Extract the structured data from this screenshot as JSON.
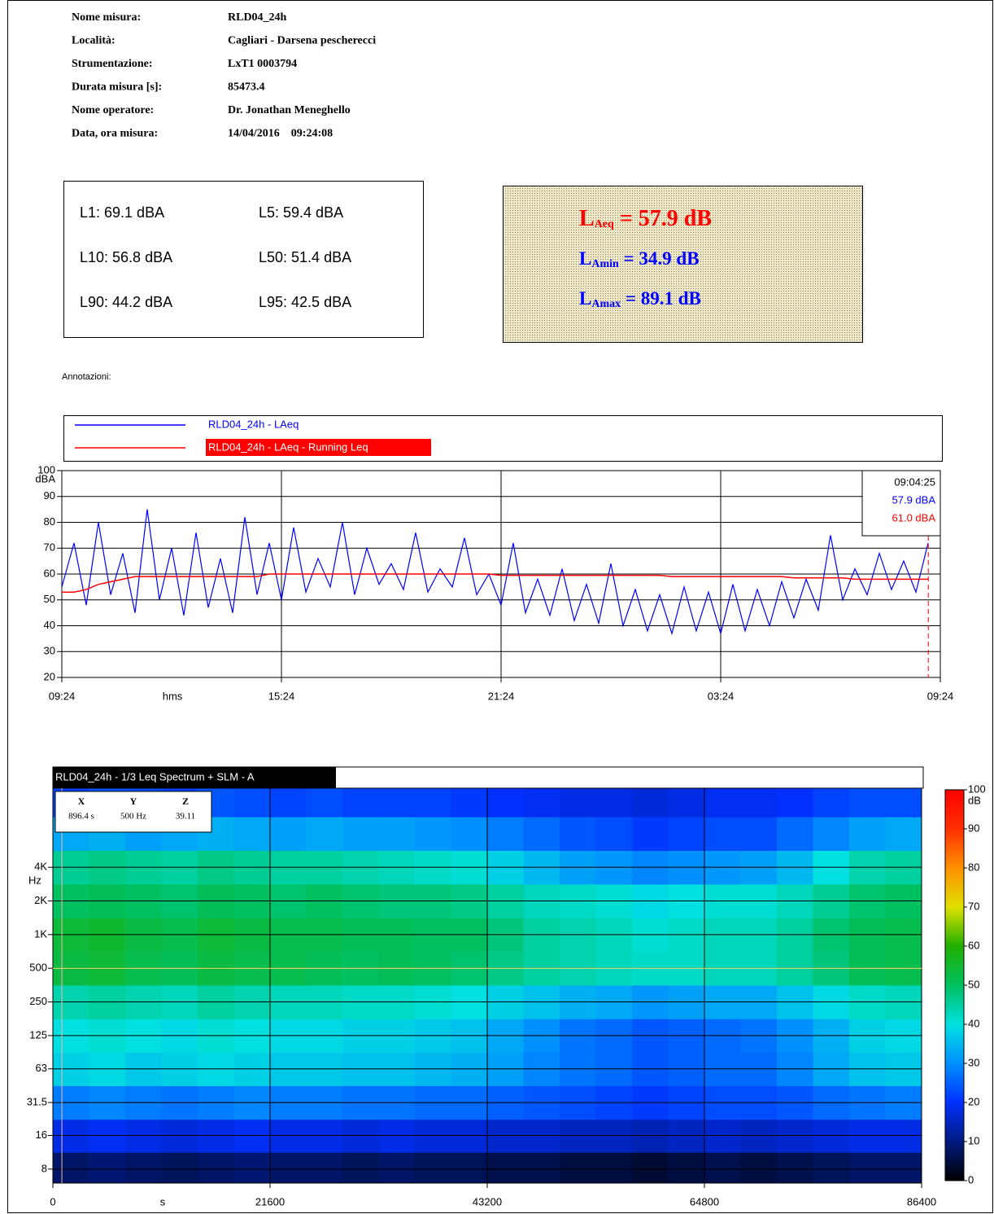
{
  "header": {
    "rows": [
      {
        "label": "Nome misura:",
        "value": "RLD04_24h"
      },
      {
        "label": "Località:",
        "value": "Cagliari - Darsena pescherecci"
      },
      {
        "label": "Strumentazione:",
        "value": "LxT1 0003794"
      },
      {
        "label": "Durata misura [s]:",
        "value": "85473.4"
      },
      {
        "label": "Nome operatore:",
        "value": "Dr. Jonathan Meneghello"
      },
      {
        "label": "Data, ora misura:",
        "value": "14/04/2016    09:24:08"
      }
    ]
  },
  "percentiles": [
    "L1: 69.1 dBA",
    "L5: 59.4 dBA",
    "L10: 56.8 dBA",
    "L50: 51.4 dBA",
    "L90: 44.2 dBA",
    "L95: 42.5 dBA"
  ],
  "levels": [
    {
      "symbol": "L",
      "subscript": "Aeq",
      "text": " = 57.9 dB",
      "color": "#ff0000"
    },
    {
      "symbol": "L",
      "subscript": "Amin",
      "text": " = 34.9 dB",
      "color": "#0000ff"
    },
    {
      "symbol": "L",
      "subscript": "Amax",
      "text": " = 89.1 dB",
      "color": "#0000ff"
    }
  ],
  "annotations_label": "Annotazioni:",
  "chart_data": [
    {
      "type": "line",
      "x_label": "hms",
      "y_label": "dBA",
      "xlim": [
        0,
        1440
      ],
      "xticks": [
        {
          "value": 0,
          "label": "09:24"
        },
        {
          "value": 360,
          "label": "15:24"
        },
        {
          "value": 720,
          "label": "21:24"
        },
        {
          "value": 1080,
          "label": "03:24"
        },
        {
          "value": 1440,
          "label": "09:24"
        }
      ],
      "ylim": [
        20,
        100
      ],
      "yticks": [
        20,
        30,
        40,
        50,
        60,
        70,
        80,
        90,
        100
      ],
      "grid": true,
      "legend_selected": 1,
      "x": [
        0,
        20,
        40,
        60,
        80,
        100,
        120,
        140,
        160,
        180,
        200,
        220,
        240,
        260,
        280,
        300,
        320,
        340,
        360,
        380,
        400,
        420,
        440,
        460,
        480,
        500,
        520,
        540,
        560,
        580,
        600,
        620,
        640,
        660,
        680,
        700,
        720,
        740,
        760,
        780,
        800,
        820,
        840,
        860,
        880,
        900,
        920,
        940,
        960,
        980,
        1000,
        1020,
        1040,
        1060,
        1080,
        1100,
        1120,
        1140,
        1160,
        1180,
        1200,
        1220,
        1240,
        1260,
        1280,
        1300,
        1320,
        1340,
        1360,
        1380,
        1400,
        1420
      ],
      "series": [
        {
          "name": "RLD04_24h - LAeq",
          "color": "#0000ff",
          "values": [
            55,
            72,
            48,
            80,
            52,
            68,
            45,
            85,
            50,
            70,
            44,
            76,
            47,
            66,
            45,
            82,
            52,
            72,
            50,
            78,
            53,
            66,
            55,
            80,
            52,
            70,
            56,
            64,
            54,
            76,
            53,
            62,
            55,
            74,
            52,
            60,
            48,
            72,
            45,
            58,
            44,
            62,
            42,
            56,
            41,
            64,
            40,
            54,
            38,
            52,
            37,
            55,
            38,
            53,
            37,
            56,
            38,
            54,
            40,
            57,
            43,
            58,
            46,
            75,
            50,
            62,
            52,
            68,
            54,
            65,
            53,
            72
          ]
        },
        {
          "name": "RLD04_24h - LAeq - Running Leq",
          "color": "#ff0000",
          "values": [
            53,
            53,
            54,
            56,
            57,
            58,
            59,
            59,
            59,
            59,
            59,
            59,
            59,
            59,
            59,
            59,
            59,
            60,
            60,
            60,
            60,
            60,
            60,
            60,
            60,
            60,
            60,
            60,
            60,
            60,
            60,
            60,
            60,
            60,
            60,
            60,
            59.5,
            59.5,
            59.5,
            59.5,
            59.5,
            59.5,
            59.5,
            59.5,
            59.5,
            59.5,
            59.5,
            59.5,
            59.5,
            59.5,
            59,
            59,
            59,
            59,
            59,
            59,
            59,
            59,
            59,
            59,
            58.5,
            58.5,
            58.5,
            58.5,
            58.5,
            58,
            58,
            58,
            58,
            58,
            58,
            58
          ]
        }
      ],
      "cursor": {
        "x": 1420.3,
        "time": "09:04:25",
        "readouts": [
          "57.9 dBA",
          "61.0 dBA"
        ]
      }
    },
    {
      "type": "heatmap",
      "title": "RLD04_24h - 1/3 Leq Spectrum + SLM - A",
      "x_label": "s",
      "y_label": "Hz",
      "z_label": "dB",
      "log_y": true,
      "xlim": [
        0,
        86400
      ],
      "xticks": [
        0,
        21600,
        43200,
        64800,
        86400
      ],
      "ylim": [
        6,
        20400
      ],
      "yticks": [
        8,
        16,
        31.5,
        63,
        125,
        250,
        500,
        {
          "value": 1000,
          "label": "1K"
        },
        {
          "value": 2000,
          "label": "2K"
        },
        {
          "value": 4000,
          "label": "4K"
        }
      ],
      "zlim": [
        0,
        100
      ],
      "zticks": [
        0,
        10,
        20,
        30,
        40,
        50,
        60,
        70,
        80,
        90,
        100
      ],
      "colorscale": [
        "#000000",
        "#001a80",
        "#0030ff",
        "#0090ff",
        "#00e0e0",
        "#00c060",
        "#20b000",
        "#e0e000",
        "#ff9000",
        "#ff3000",
        "#ff0000"
      ],
      "x_bins": [
        0,
        3600,
        7200,
        10800,
        14400,
        18000,
        21600,
        25200,
        28800,
        32400,
        36000,
        39600,
        43200,
        46800,
        50400,
        54000,
        57600,
        61200,
        64800,
        68400,
        72000,
        75600,
        79200,
        82800,
        86400
      ],
      "y_bands": [
        8,
        16,
        31.5,
        63,
        125,
        250,
        500,
        1000,
        2000,
        4000,
        8000,
        16000
      ],
      "z": [
        [
          8,
          9,
          8,
          7,
          8,
          9,
          8,
          8,
          7,
          8,
          7,
          7,
          6,
          6,
          5,
          5,
          4,
          5,
          6,
          5,
          6,
          7,
          8,
          8
        ],
        [
          18,
          19,
          18,
          17,
          18,
          19,
          18,
          18,
          17,
          18,
          17,
          17,
          16,
          16,
          15,
          15,
          14,
          15,
          16,
          15,
          16,
          17,
          18,
          18
        ],
        [
          28,
          29,
          28,
          27,
          28,
          29,
          28,
          28,
          27,
          27,
          26,
          26,
          25,
          24,
          23,
          22,
          21,
          22,
          23,
          23,
          24,
          26,
          27,
          28
        ],
        [
          38,
          39,
          37,
          38,
          39,
          38,
          37,
          37,
          36,
          36,
          35,
          34,
          32,
          29,
          27,
          26,
          24,
          25,
          26,
          26,
          29,
          33,
          36,
          37
        ],
        [
          40,
          41,
          40,
          39,
          41,
          40,
          39,
          39,
          38,
          38,
          37,
          36,
          33,
          30,
          27,
          26,
          24,
          25,
          26,
          27,
          30,
          34,
          38,
          39
        ],
        [
          44,
          45,
          44,
          43,
          45,
          44,
          43,
          43,
          42,
          42,
          41,
          40,
          38,
          36,
          34,
          33,
          31,
          32,
          33,
          33,
          36,
          39,
          42,
          43
        ],
        [
          53,
          54,
          52,
          51,
          53,
          52,
          52,
          51,
          50,
          51,
          50,
          49,
          47,
          45,
          44,
          43,
          42,
          42,
          43,
          43,
          45,
          48,
          51,
          52
        ],
        [
          54,
          55,
          53,
          52,
          54,
          53,
          52,
          52,
          51,
          51,
          50,
          50,
          48,
          45,
          44,
          43,
          41,
          42,
          43,
          43,
          45,
          49,
          51,
          52
        ],
        [
          50,
          51,
          50,
          49,
          51,
          50,
          49,
          50,
          49,
          48,
          48,
          47,
          45,
          43,
          42,
          41,
          39,
          40,
          41,
          41,
          43,
          46,
          49,
          50
        ],
        [
          46,
          47,
          46,
          45,
          47,
          46,
          45,
          45,
          44,
          43,
          42,
          41,
          38,
          35,
          32,
          31,
          29,
          30,
          31,
          32,
          35,
          40,
          44,
          45
        ],
        [
          33,
          34,
          32,
          33,
          34,
          33,
          32,
          33,
          32,
          32,
          31,
          30,
          28,
          26,
          24,
          23,
          21,
          22,
          23,
          23,
          26,
          29,
          32,
          33
        ],
        [
          22,
          24,
          23,
          22,
          24,
          23,
          22,
          23,
          22,
          22,
          22,
          21,
          20,
          19,
          18,
          18,
          17,
          18,
          19,
          19,
          20,
          22,
          23,
          23
        ]
      ],
      "cursor": {
        "x": 896.4,
        "y": 500,
        "headers": [
          "X",
          "Y",
          "Z"
        ],
        "values": [
          "896.4 s",
          "500 Hz",
          "39.11"
        ]
      }
    }
  ]
}
